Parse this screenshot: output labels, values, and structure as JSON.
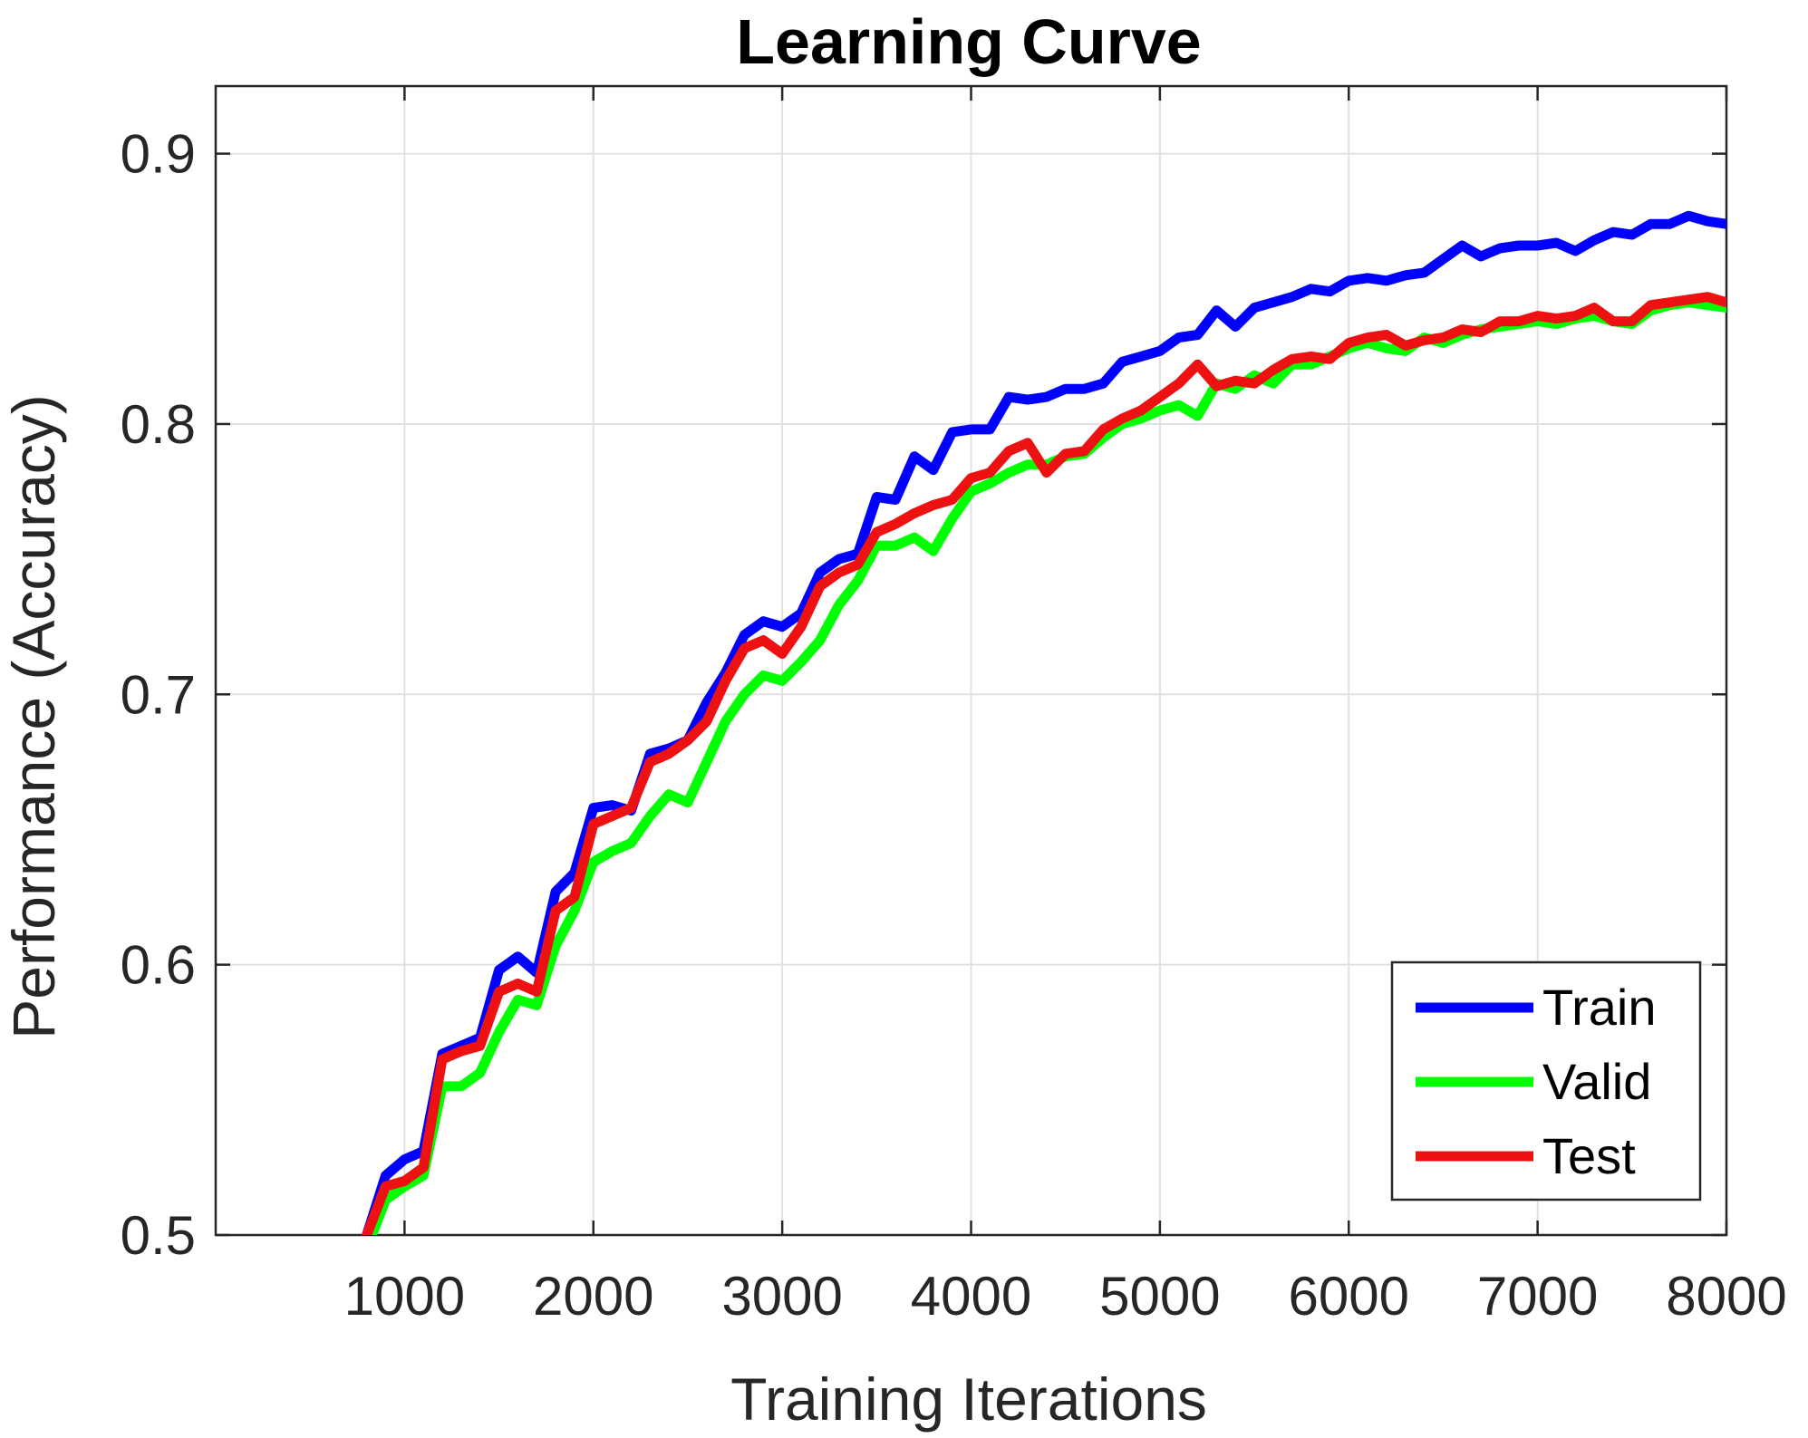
{
  "chart_data": {
    "type": "line",
    "title": "Learning Curve",
    "xlabel": "Training Iterations",
    "ylabel": "Performance (Accuracy)",
    "xlim": [
      0,
      8000
    ],
    "ylim": [
      0.5,
      0.925
    ],
    "xticks": [
      1000,
      2000,
      3000,
      4000,
      5000,
      6000,
      7000,
      8000
    ],
    "yticks": [
      0.5,
      0.6,
      0.7,
      0.8,
      0.9
    ],
    "xtick_labels": [
      "1000",
      "2000",
      "3000",
      "4000",
      "5000",
      "6000",
      "7000",
      "8000"
    ],
    "ytick_labels": [
      "0.5",
      "0.6",
      "0.7",
      "0.8",
      "0.9"
    ],
    "grid": true,
    "legend_position": "bottom-right",
    "series": [
      {
        "name": "Train",
        "color": "#0000ff",
        "x": [
          800,
          900,
          1000,
          1100,
          1200,
          1300,
          1400,
          1500,
          1600,
          1700,
          1800,
          1900,
          2000,
          2100,
          2200,
          2300,
          2400,
          2500,
          2600,
          2700,
          2800,
          2900,
          3000,
          3100,
          3200,
          3300,
          3400,
          3500,
          3600,
          3700,
          3800,
          3900,
          4000,
          4100,
          4200,
          4300,
          4400,
          4500,
          4600,
          4700,
          4800,
          4900,
          5000,
          5100,
          5200,
          5300,
          5400,
          5500,
          5600,
          5700,
          5800,
          5900,
          6000,
          6100,
          6200,
          6300,
          6400,
          6500,
          6600,
          6700,
          6800,
          6900,
          7000,
          7100,
          7200,
          7300,
          7400,
          7500,
          7600,
          7700,
          7800,
          7900,
          8000
        ],
        "y": [
          0.5,
          0.522,
          0.528,
          0.531,
          0.567,
          0.57,
          0.573,
          0.598,
          0.603,
          0.597,
          0.627,
          0.634,
          0.658,
          0.659,
          0.657,
          0.678,
          0.68,
          0.683,
          0.697,
          0.708,
          0.722,
          0.727,
          0.725,
          0.73,
          0.745,
          0.75,
          0.752,
          0.773,
          0.772,
          0.788,
          0.783,
          0.797,
          0.798,
          0.798,
          0.81,
          0.809,
          0.81,
          0.813,
          0.813,
          0.815,
          0.823,
          0.825,
          0.827,
          0.832,
          0.833,
          0.842,
          0.836,
          0.843,
          0.845,
          0.847,
          0.85,
          0.849,
          0.853,
          0.854,
          0.853,
          0.855,
          0.856,
          0.861,
          0.866,
          0.862,
          0.865,
          0.866,
          0.866,
          0.867,
          0.864,
          0.868,
          0.871,
          0.87,
          0.874,
          0.874,
          0.877,
          0.875,
          0.874
        ]
      },
      {
        "name": "Valid",
        "color": "#00ff00",
        "x": [
          800,
          900,
          1000,
          1100,
          1200,
          1300,
          1400,
          1500,
          1600,
          1700,
          1800,
          1900,
          2000,
          2100,
          2200,
          2300,
          2400,
          2500,
          2600,
          2700,
          2800,
          2900,
          3000,
          3100,
          3200,
          3300,
          3400,
          3500,
          3600,
          3700,
          3800,
          3900,
          4000,
          4100,
          4200,
          4300,
          4400,
          4500,
          4600,
          4700,
          4800,
          4900,
          5000,
          5100,
          5200,
          5300,
          5400,
          5500,
          5600,
          5700,
          5800,
          5900,
          6000,
          6100,
          6200,
          6300,
          6400,
          6500,
          6600,
          6700,
          6800,
          6900,
          7000,
          7100,
          7200,
          7300,
          7400,
          7500,
          7600,
          7700,
          7800,
          7900,
          8000
        ],
        "y": [
          0.495,
          0.513,
          0.518,
          0.522,
          0.555,
          0.555,
          0.56,
          0.575,
          0.587,
          0.585,
          0.607,
          0.62,
          0.638,
          0.642,
          0.645,
          0.655,
          0.663,
          0.66,
          0.675,
          0.69,
          0.7,
          0.707,
          0.705,
          0.712,
          0.72,
          0.733,
          0.742,
          0.755,
          0.755,
          0.758,
          0.753,
          0.765,
          0.775,
          0.778,
          0.782,
          0.785,
          0.785,
          0.788,
          0.789,
          0.795,
          0.8,
          0.802,
          0.805,
          0.807,
          0.803,
          0.815,
          0.813,
          0.818,
          0.815,
          0.822,
          0.822,
          0.825,
          0.828,
          0.83,
          0.828,
          0.827,
          0.832,
          0.83,
          0.833,
          0.835,
          0.836,
          0.837,
          0.838,
          0.837,
          0.839,
          0.84,
          0.838,
          0.837,
          0.842,
          0.844,
          0.845,
          0.844,
          0.843
        ]
      },
      {
        "name": "Test",
        "color": "#ee1111",
        "x": [
          800,
          900,
          1000,
          1100,
          1200,
          1300,
          1400,
          1500,
          1600,
          1700,
          1800,
          1900,
          2000,
          2100,
          2200,
          2300,
          2400,
          2500,
          2600,
          2700,
          2800,
          2900,
          3000,
          3100,
          3200,
          3300,
          3400,
          3500,
          3600,
          3700,
          3800,
          3900,
          4000,
          4100,
          4200,
          4300,
          4400,
          4500,
          4600,
          4700,
          4800,
          4900,
          5000,
          5100,
          5200,
          5300,
          5400,
          5500,
          5600,
          5700,
          5800,
          5900,
          6000,
          6100,
          6200,
          6300,
          6400,
          6500,
          6600,
          6700,
          6800,
          6900,
          7000,
          7100,
          7200,
          7300,
          7400,
          7500,
          7600,
          7700,
          7800,
          7900,
          8000
        ],
        "y": [
          0.5,
          0.518,
          0.52,
          0.525,
          0.565,
          0.568,
          0.57,
          0.59,
          0.593,
          0.59,
          0.62,
          0.625,
          0.652,
          0.655,
          0.658,
          0.675,
          0.678,
          0.683,
          0.69,
          0.705,
          0.717,
          0.72,
          0.715,
          0.725,
          0.74,
          0.745,
          0.748,
          0.76,
          0.763,
          0.767,
          0.77,
          0.772,
          0.78,
          0.782,
          0.79,
          0.793,
          0.782,
          0.789,
          0.79,
          0.798,
          0.802,
          0.805,
          0.81,
          0.815,
          0.822,
          0.814,
          0.816,
          0.815,
          0.82,
          0.824,
          0.825,
          0.824,
          0.83,
          0.832,
          0.833,
          0.829,
          0.831,
          0.832,
          0.835,
          0.834,
          0.838,
          0.838,
          0.84,
          0.839,
          0.84,
          0.843,
          0.838,
          0.838,
          0.844,
          0.845,
          0.846,
          0.847,
          0.845
        ]
      }
    ]
  }
}
